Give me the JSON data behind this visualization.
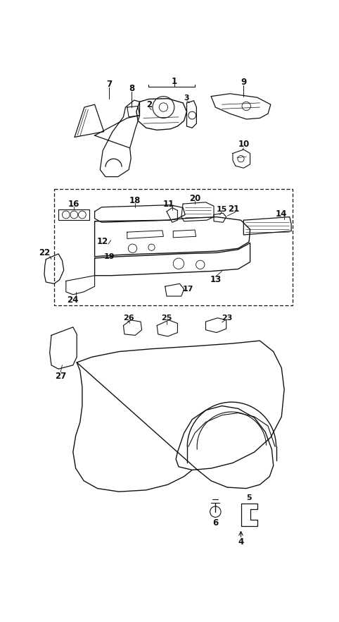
{
  "bg_color": "#ffffff",
  "line_color": "#111111",
  "fig_width": 4.82,
  "fig_height": 8.82,
  "dpi": 100
}
